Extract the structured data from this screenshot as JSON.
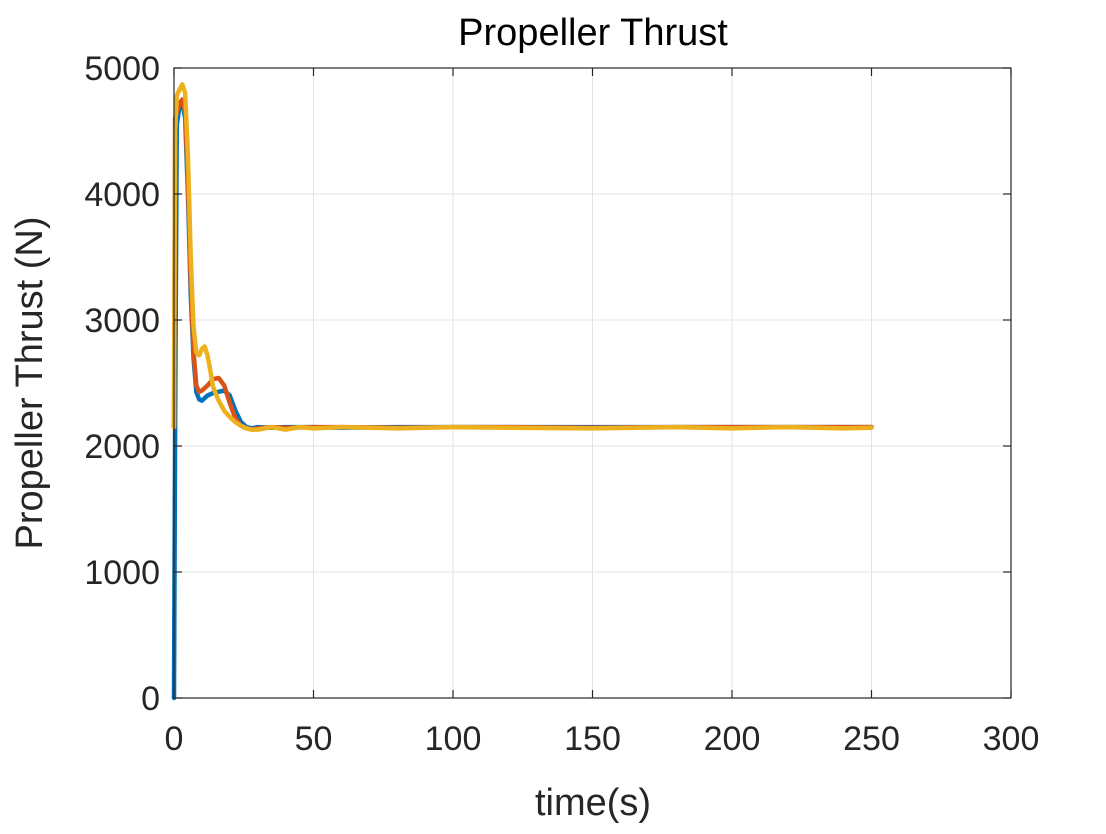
{
  "chart_data": {
    "type": "line",
    "title": "Propeller Thrust",
    "xlabel": "time(s)",
    "ylabel": "Propeller Thrust (N)",
    "xlim": [
      0,
      300
    ],
    "ylim": [
      0,
      5000
    ],
    "xticks": [
      "0",
      "50",
      "100",
      "150",
      "200",
      "250",
      "300"
    ],
    "yticks": [
      "0",
      "1000",
      "2000",
      "3000",
      "4000",
      "5000"
    ],
    "grid": true,
    "legend": "none",
    "series": [
      {
        "color": "#0072BD",
        "x": [
          0,
          0.4,
          1,
          2,
          3,
          4,
          5,
          6,
          7,
          8,
          9,
          10,
          12,
          14,
          16,
          18,
          20,
          22,
          24,
          26,
          28,
          30,
          35,
          40,
          50,
          60,
          80,
          100,
          120,
          150,
          180,
          200,
          220,
          240,
          250
        ],
        "y": [
          0,
          2150,
          4550,
          4700,
          4720,
          4600,
          4000,
          3200,
          2700,
          2430,
          2370,
          2360,
          2400,
          2420,
          2430,
          2440,
          2400,
          2280,
          2190,
          2150,
          2140,
          2150,
          2145,
          2150,
          2150,
          2145,
          2150,
          2150,
          2150,
          2150,
          2150,
          2150,
          2150,
          2150,
          2150
        ]
      },
      {
        "color": "#D95319",
        "x": [
          0,
          0.4,
          1,
          2,
          3,
          4,
          5,
          6,
          7,
          8,
          9,
          10,
          12,
          14,
          16,
          18,
          20,
          22,
          24,
          26,
          28,
          30,
          35,
          40,
          50,
          60,
          80,
          100,
          120,
          150,
          180,
          200,
          220,
          240,
          250
        ],
        "y": [
          2150,
          4600,
          4650,
          4720,
          4750,
          4650,
          4100,
          3300,
          2750,
          2480,
          2430,
          2440,
          2480,
          2530,
          2540,
          2480,
          2340,
          2220,
          2160,
          2140,
          2130,
          2140,
          2150,
          2145,
          2150,
          2150,
          2145,
          2150,
          2150,
          2145,
          2150,
          2150,
          2150,
          2150,
          2150
        ]
      },
      {
        "color": "#EDB120",
        "x": [
          0,
          0.4,
          1,
          2,
          3,
          4,
          5,
          6,
          7,
          8,
          9,
          10,
          11,
          12,
          13,
          14,
          16,
          18,
          20,
          22,
          24,
          26,
          28,
          30,
          35,
          40,
          45,
          50,
          60,
          80,
          100,
          120,
          150,
          180,
          200,
          220,
          240,
          250
        ],
        "y": [
          2150,
          4500,
          4780,
          4830,
          4870,
          4800,
          4300,
          3500,
          2950,
          2740,
          2720,
          2770,
          2790,
          2720,
          2600,
          2470,
          2360,
          2280,
          2230,
          2190,
          2160,
          2140,
          2130,
          2130,
          2150,
          2130,
          2150,
          2140,
          2150,
          2140,
          2150,
          2145,
          2140,
          2150,
          2140,
          2150,
          2140,
          2145
        ]
      }
    ]
  }
}
